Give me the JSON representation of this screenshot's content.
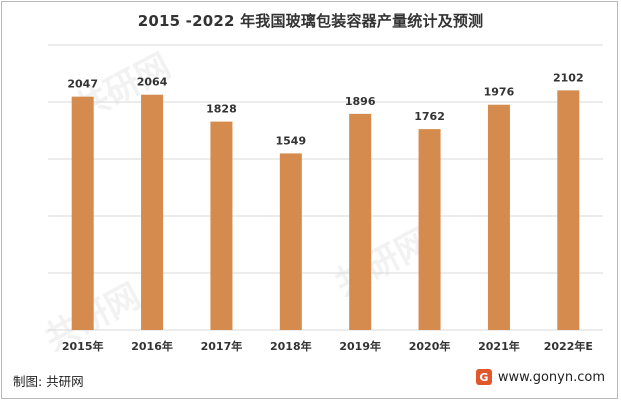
{
  "chart_data": {
    "type": "bar",
    "title": "2015 -2022 年我国玻璃包装容器产量统计及预测",
    "categories": [
      "2015年",
      "2016年",
      "2017年",
      "2018年",
      "2019年",
      "2020年",
      "2021年",
      "2022年E"
    ],
    "values": [
      2047,
      2064,
      1828,
      1549,
      1896,
      1762,
      1976,
      2102
    ],
    "ylim": [
      0,
      2500
    ],
    "grid": true,
    "xlabel": "",
    "ylabel": "",
    "bar_color": "#d58b4d"
  },
  "footer": {
    "source": "制图: 共研网",
    "website": "www.gonyn.com",
    "logo_glyph": "G"
  },
  "colors": {
    "gridline": "#d9d9d9",
    "label": "#333333"
  }
}
